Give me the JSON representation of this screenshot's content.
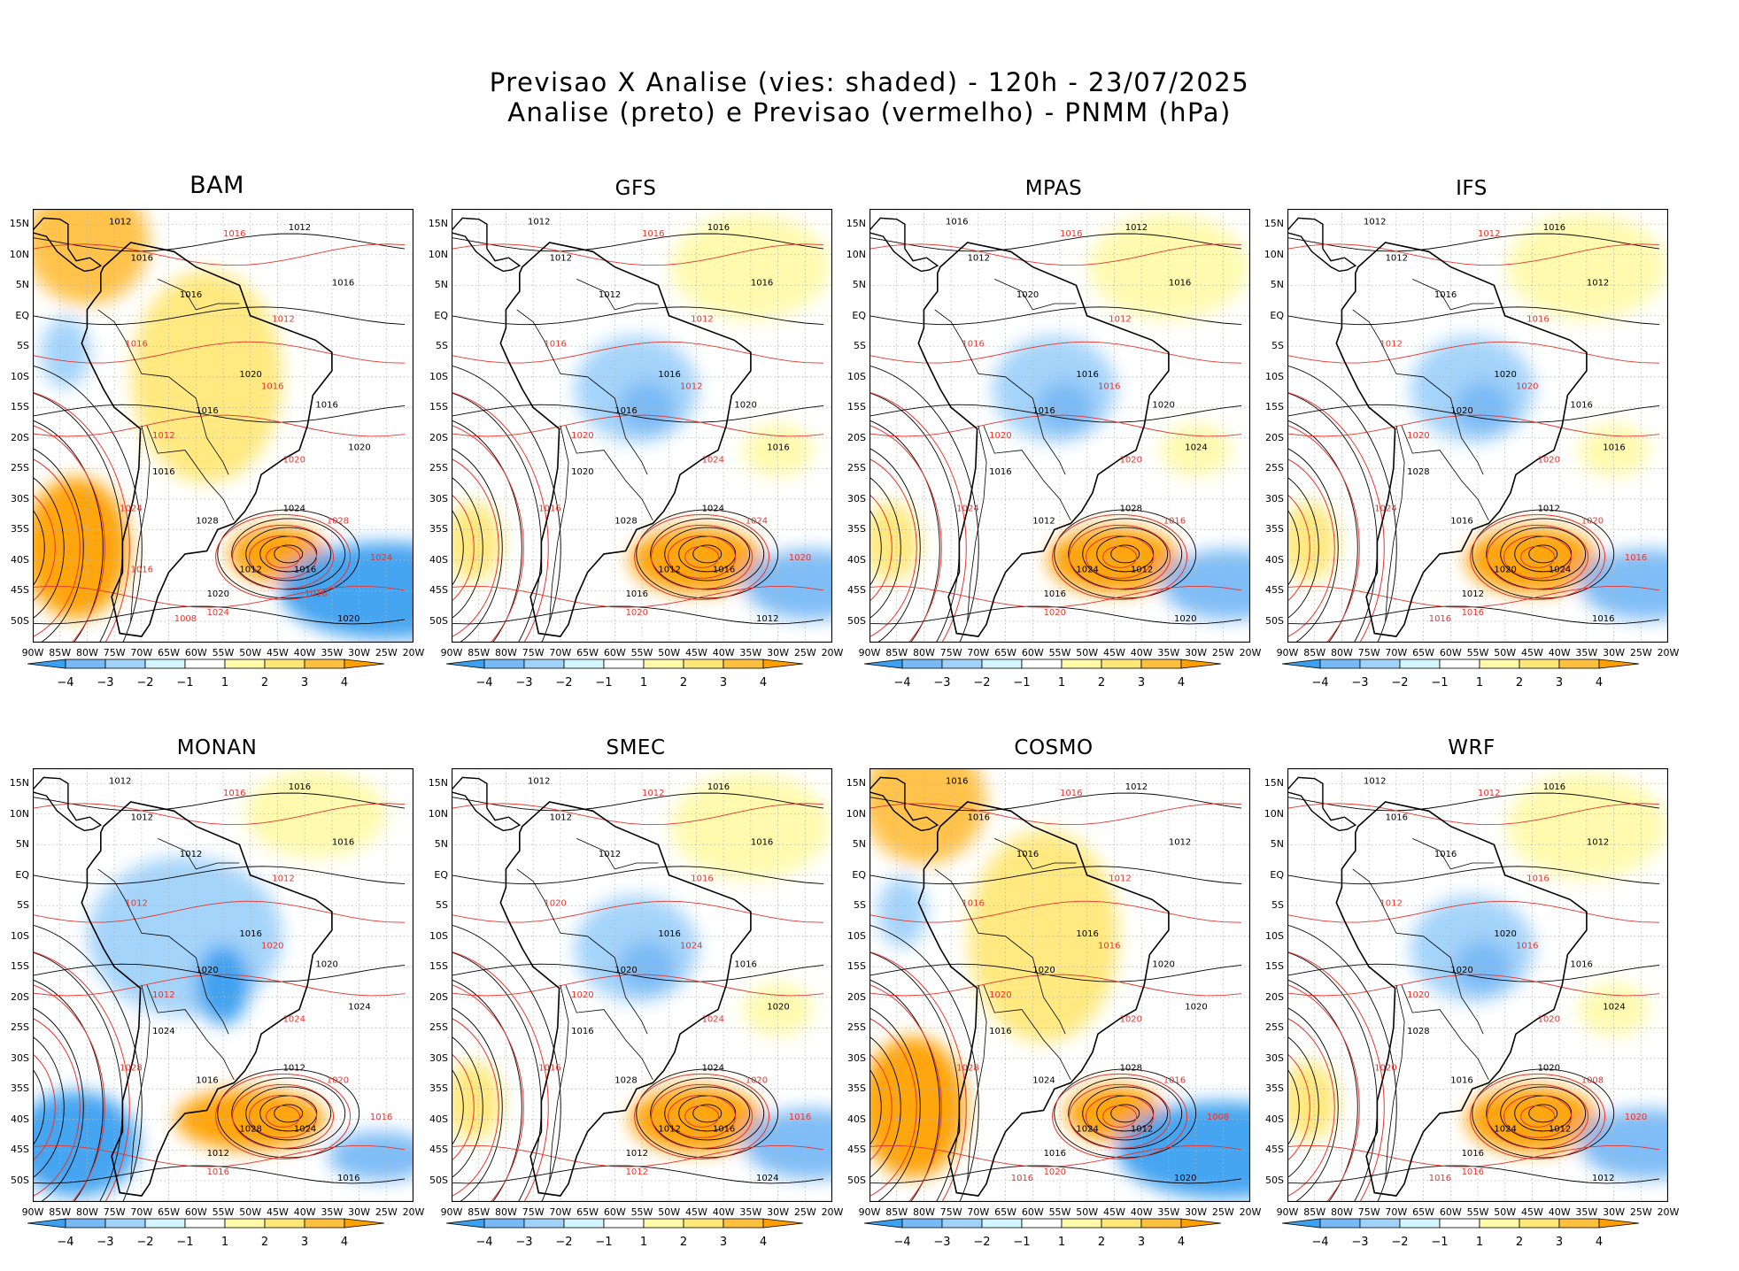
{
  "header": {
    "line1": "Previsao X Analise (vies: shaded) - 120h - 23/07/2025",
    "line2": "Analise (preto) e Previsao (vermelho) - PNMM (hPa)"
  },
  "axis": {
    "lat_labels": [
      "15N",
      "10N",
      "5N",
      "EQ",
      "5S",
      "10S",
      "15S",
      "20S",
      "25S",
      "30S",
      "35S",
      "40S",
      "45S",
      "50S"
    ],
    "lon_labels": [
      "90W",
      "85W",
      "80W",
      "75W",
      "70W",
      "65W",
      "60W",
      "55W",
      "50W",
      "45W",
      "40W",
      "35W",
      "30W",
      "25W",
      "20W"
    ]
  },
  "colorbar": {
    "labels": [
      "-4",
      "-3",
      "-2",
      "-1",
      "1",
      "2",
      "3",
      "4"
    ],
    "colors": [
      "#3ca0f0",
      "#78b9f5",
      "#a0d2fa",
      "#d2f5ff",
      "#ffffff",
      "#fffaaa",
      "#ffe878",
      "#ffc040",
      "#ffa000"
    ]
  },
  "colors": {
    "analysis_contour": "#000000",
    "forecast_contour": "#e8342c",
    "grid": "#b4b4b4"
  },
  "panels": [
    {
      "model": "BAM",
      "pattern": "warm",
      "isobars_analysis": [
        "1012",
        "1012",
        "1016",
        "1016",
        "1016",
        "1020",
        "1016",
        "1016",
        "1020",
        "1016",
        "1028",
        "1024",
        "1012",
        "1016",
        "1020",
        "1020"
      ],
      "isobars_forecast": [
        "1016",
        "1012",
        "1016",
        "1016",
        "1012",
        "1020",
        "1020",
        "1024",
        "1024",
        "1028",
        "1024",
        "1008",
        "1016",
        "1016"
      ]
    },
    {
      "model": "GFS",
      "pattern": "mixed",
      "isobars_analysis": [
        "1012",
        "1016",
        "1012",
        "1016",
        "1012",
        "1016",
        "1016",
        "1020",
        "1016",
        "1020",
        "1028",
        "1024",
        "1012",
        "1016",
        "1016",
        "1012"
      ],
      "isobars_forecast": [
        "1016",
        "1012",
        "1016",
        "1012",
        "1020",
        "1024",
        "1020",
        "1016",
        "1020",
        "1024",
        "1020"
      ]
    },
    {
      "model": "MPAS",
      "pattern": "mixed",
      "isobars_analysis": [
        "1016",
        "1012",
        "1012",
        "1016",
        "1020",
        "1016",
        "1016",
        "1020",
        "1024",
        "1016",
        "1012",
        "1028",
        "1024",
        "1012",
        "1016",
        "1020"
      ],
      "isobars_forecast": [
        "1016",
        "1012",
        "1016",
        "1016",
        "1020",
        "1020",
        "1028",
        "1024",
        "1020",
        "1016"
      ]
    },
    {
      "model": "IFS",
      "pattern": "mixed",
      "isobars_analysis": [
        "1012",
        "1016",
        "1012",
        "1012",
        "1016",
        "1020",
        "1020",
        "1016",
        "1016",
        "1028",
        "1016",
        "1012",
        "1020",
        "1024",
        "1012",
        "1016"
      ],
      "isobars_forecast": [
        "1012",
        "1016",
        "1012",
        "1020",
        "1020",
        "1020",
        "1024",
        "1024",
        "1016",
        "1020",
        "1016",
        "1016"
      ]
    },
    {
      "model": "MONAN",
      "pattern": "cold",
      "isobars_analysis": [
        "1012",
        "1016",
        "1012",
        "1016",
        "1012",
        "1016",
        "1020",
        "1020",
        "1024",
        "1024",
        "1016",
        "1012",
        "1028",
        "1024",
        "1012",
        "1016"
      ],
      "isobars_forecast": [
        "1016",
        "1012",
        "1012",
        "1020",
        "1012",
        "1024",
        "1020",
        "1028",
        "1016",
        "1020",
        "1016"
      ]
    },
    {
      "model": "SMEC",
      "pattern": "mixed",
      "isobars_analysis": [
        "1012",
        "1016",
        "1012",
        "1016",
        "1012",
        "1016",
        "1020",
        "1016",
        "1020",
        "1016",
        "1028",
        "1024",
        "1012",
        "1016",
        "1012",
        "1024"
      ],
      "isobars_forecast": [
        "1012",
        "1016",
        "1020",
        "1024",
        "1020",
        "1024",
        "1020",
        "1016",
        "1012",
        "1020",
        "1016"
      ]
    },
    {
      "model": "COSMO",
      "pattern": "warm",
      "isobars_analysis": [
        "1016",
        "1012",
        "1016",
        "1012",
        "1016",
        "1016",
        "1020",
        "1020",
        "1020",
        "1016",
        "1024",
        "1028",
        "1024",
        "1012",
        "1016",
        "1020"
      ],
      "isobars_forecast": [
        "1016",
        "1012",
        "1016",
        "1016",
        "1020",
        "1020",
        "1024",
        "1028",
        "1020",
        "1016",
        "1008",
        "1016"
      ]
    },
    {
      "model": "WRF",
      "pattern": "mixed",
      "isobars_analysis": [
        "1012",
        "1016",
        "1016",
        "1012",
        "1016",
        "1020",
        "1020",
        "1016",
        "1024",
        "1028",
        "1016",
        "1020",
        "1024",
        "1012",
        "1016",
        "1012"
      ],
      "isobars_forecast": [
        "1012",
        "1016",
        "1012",
        "1016",
        "1020",
        "1020",
        "1024",
        "1020",
        "1016",
        "1008",
        "1020",
        "1016"
      ]
    }
  ]
}
